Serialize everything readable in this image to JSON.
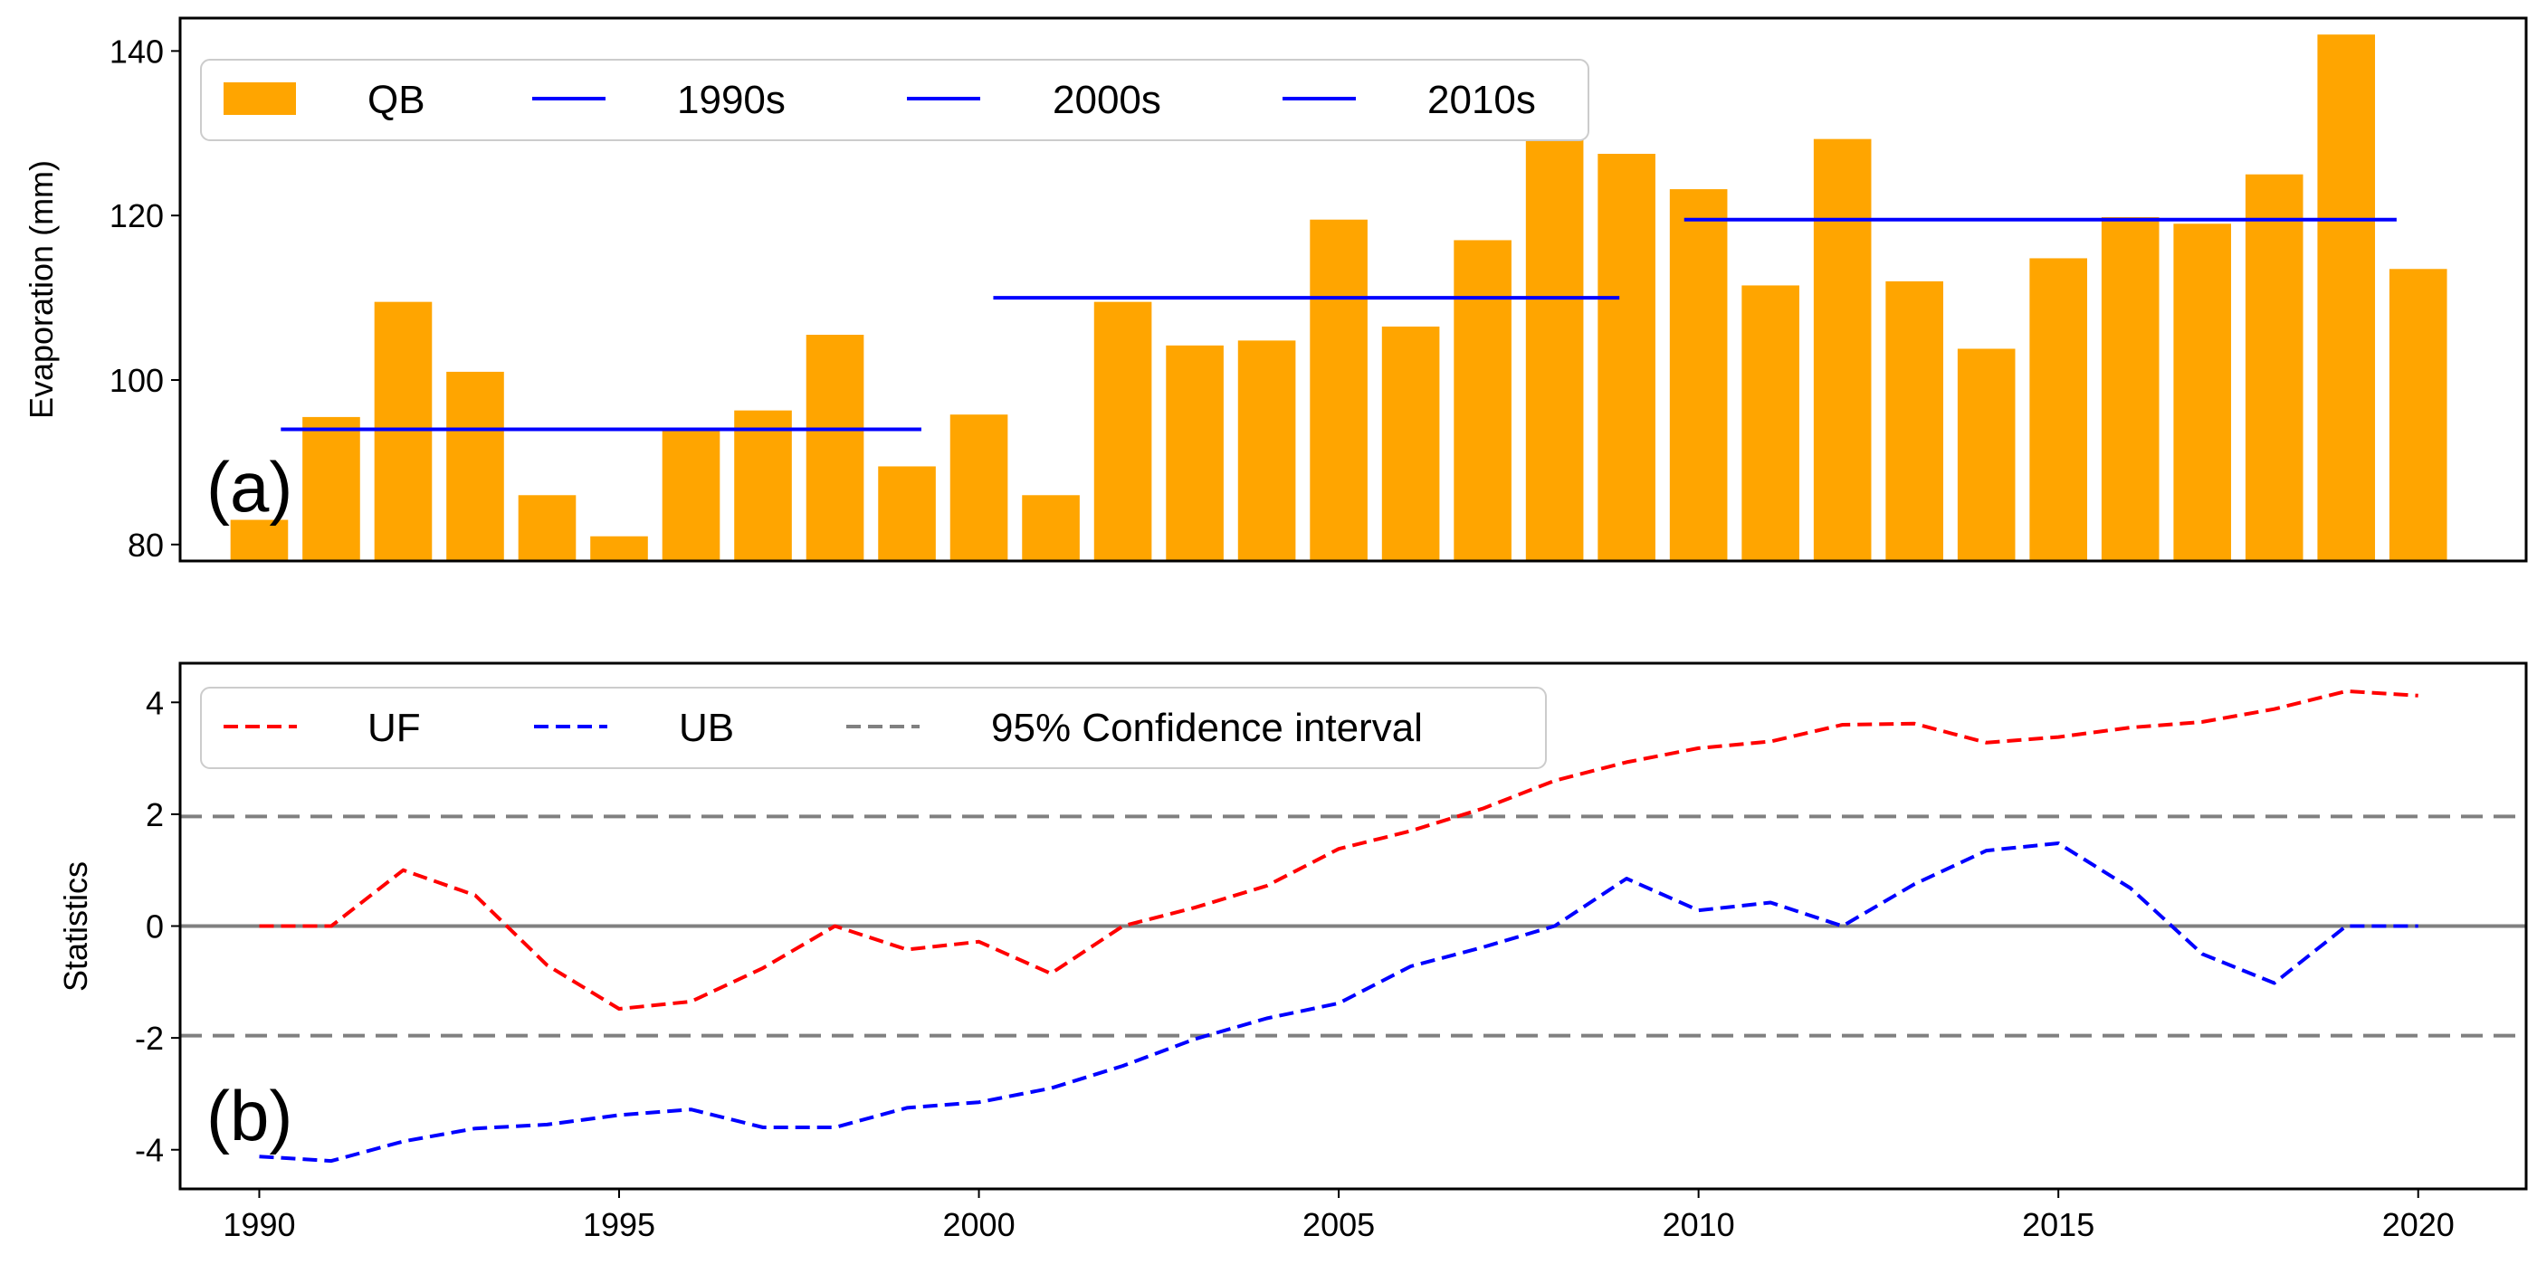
{
  "chart_data": [
    {
      "id": "a",
      "type": "bar",
      "panel_label": "(a)",
      "title": "",
      "xlabel": "",
      "ylabel": "Evaporation (mm)",
      "ylim": [
        78,
        144
      ],
      "yticks": [
        80,
        100,
        120,
        140
      ],
      "xlim": [
        1988.9,
        2021.5
      ],
      "bar_series": {
        "name": "QB",
        "color": "#FFA500",
        "x": [
          1990,
          1991,
          1992,
          1993,
          1994,
          1995,
          1996,
          1997,
          1998,
          1999,
          2000,
          2001,
          2002,
          2003,
          2004,
          2005,
          2006,
          2007,
          2008,
          2009,
          2010,
          2011,
          2012,
          2013,
          2014,
          2015,
          2016,
          2017,
          2018,
          2019,
          2020
        ],
        "values": [
          83,
          95.5,
          109.5,
          101,
          86,
          81,
          94,
          96.3,
          105.5,
          89.5,
          95.8,
          86,
          109.5,
          104.2,
          104.8,
          119.5,
          106.5,
          117,
          131,
          127.5,
          123.2,
          111.5,
          129.3,
          112,
          103.8,
          114.8,
          119.8,
          119,
          125,
          142,
          113.5
        ]
      },
      "mean_lines": [
        {
          "name": "1990s",
          "color": "#0000FF",
          "x_start": 1990.3,
          "x_end": 1999.2,
          "value": 94
        },
        {
          "name": "2000s",
          "color": "#0000FF",
          "x_start": 2000.2,
          "x_end": 2008.9,
          "value": 110
        },
        {
          "name": "2010s",
          "color": "#0000FF",
          "x_start": 2009.8,
          "x_end": 2019.7,
          "value": 119.5
        }
      ],
      "legend": {
        "placement": "top-left",
        "entries": [
          "QB",
          "1990s",
          "2000s",
          "2010s"
        ]
      }
    },
    {
      "id": "b",
      "type": "line",
      "panel_label": "(b)",
      "title": "",
      "xlabel": "",
      "ylabel": "Statistics",
      "ylim": [
        -4.7,
        4.7
      ],
      "yticks": [
        4,
        2,
        0,
        -2,
        -4
      ],
      "ytick_labels": [
        "4",
        "2",
        "0",
        "-2",
        "-4"
      ],
      "xlim": [
        1988.9,
        2021.5
      ],
      "xticks": [
        1990,
        1995,
        2000,
        2005,
        2010,
        2015,
        2020
      ],
      "x": [
        1990,
        1991,
        1992,
        1993,
        1994,
        1995,
        1996,
        1997,
        1998,
        1999,
        2000,
        2001,
        2002,
        2003,
        2004,
        2005,
        2006,
        2007,
        2008,
        2009,
        2010,
        2011,
        2012,
        2013,
        2014,
        2015,
        2016,
        2017,
        2018,
        2019,
        2020
      ],
      "series": [
        {
          "name": "UF",
          "color": "#FF0000",
          "dashed": true,
          "values": [
            0,
            0,
            1,
            0.55,
            -0.7,
            -1.48,
            -1.35,
            -0.75,
            0,
            -0.42,
            -0.28,
            -0.85,
            0,
            0.33,
            0.72,
            1.38,
            1.7,
            2.1,
            2.6,
            2.93,
            3.18,
            3.3,
            3.6,
            3.62,
            3.28,
            3.38,
            3.55,
            3.65,
            3.88,
            4.2,
            4.12
          ]
        },
        {
          "name": "UB",
          "color": "#0000FF",
          "dashed": true,
          "values": [
            -4.12,
            -4.2,
            -3.85,
            -3.62,
            -3.55,
            -3.38,
            -3.28,
            -3.6,
            -3.6,
            -3.25,
            -3.15,
            -2.9,
            -2.5,
            -2.02,
            -1.65,
            -1.38,
            -0.72,
            -0.38,
            0,
            0.85,
            0.28,
            0.42,
            0,
            0.75,
            1.35,
            1.48,
            0.68,
            -0.5,
            -1.02,
            0,
            0
          ]
        },
        {
          "name": "95% Confidence interval",
          "color": "#808080",
          "dashed": true,
          "hlines": [
            1.96,
            -1.96
          ]
        }
      ],
      "reference_line": {
        "value": 0,
        "color": "#808080"
      },
      "legend": {
        "placement": "top-left",
        "entries": [
          "UF",
          "UB",
          "95% Confidence interval"
        ]
      }
    }
  ]
}
